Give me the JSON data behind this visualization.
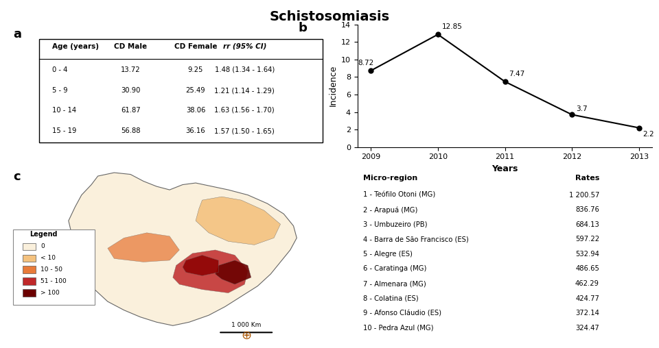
{
  "title": "Schistosomiasis",
  "panel_a_label": "a",
  "panel_b_label": "b",
  "panel_c_label": "c",
  "table_a": {
    "columns": [
      "Age (years)",
      "CD Male",
      "CD Female",
      "rr (95% CI)"
    ],
    "rows": [
      [
        "0 - 4",
        "13.72",
        "9.25",
        "1.48 (1.34 - 1.64)"
      ],
      [
        "5 - 9",
        "30.90",
        "25.49",
        "1.21 (1.14 - 1.29)"
      ],
      [
        "10 - 14",
        "61.87",
        "38.06",
        "1.63 (1.56 - 1.70)"
      ],
      [
        "15 - 19",
        "56.88",
        "36.16",
        "1.57 (1.50 - 1.65)"
      ]
    ]
  },
  "line_chart": {
    "years": [
      2009,
      2010,
      2011,
      2012,
      2013
    ],
    "incidence": [
      8.72,
      12.85,
      7.47,
      3.7,
      2.2
    ],
    "ylabel": "Incidence",
    "xlabel": "Years",
    "ylim": [
      0,
      14
    ],
    "yticks": [
      0,
      2,
      4,
      6,
      8,
      10,
      12,
      14
    ]
  },
  "legend_items": [
    {
      "label": "0",
      "color": "#FAF0DC"
    },
    {
      "label": "< 10",
      "color": "#F4C27F"
    },
    {
      "label": "10 - 50",
      "color": "#E87B3A"
    },
    {
      "label": "51 - 100",
      "color": "#C0292A"
    },
    {
      "label": "> 100",
      "color": "#6B0000"
    }
  ],
  "micro_region_table": {
    "header": [
      "Micro-region",
      "Rates"
    ],
    "rows": [
      [
        "1 - Teófilo Otoni (MG)",
        "1 200.57"
      ],
      [
        "2 - Arapuá (MG)",
        "836.76"
      ],
      [
        "3 - Umbuzeiro (PB)",
        "684.13"
      ],
      [
        "4 - Barra de São Francisco (ES)",
        "597.22"
      ],
      [
        "5 - Alegre (ES)",
        "532.94"
      ],
      [
        "6 - Caratinga (MG)",
        "486.65"
      ],
      [
        "7 - Almenara (MG)",
        "462.29"
      ],
      [
        "8 - Colatina (ES)",
        "424.77"
      ],
      [
        "9 - Afonso Cláudio (ES)",
        "372.14"
      ],
      [
        "10 - Pedra Azul (MG)",
        "324.47"
      ]
    ]
  },
  "background_color": "#ffffff"
}
